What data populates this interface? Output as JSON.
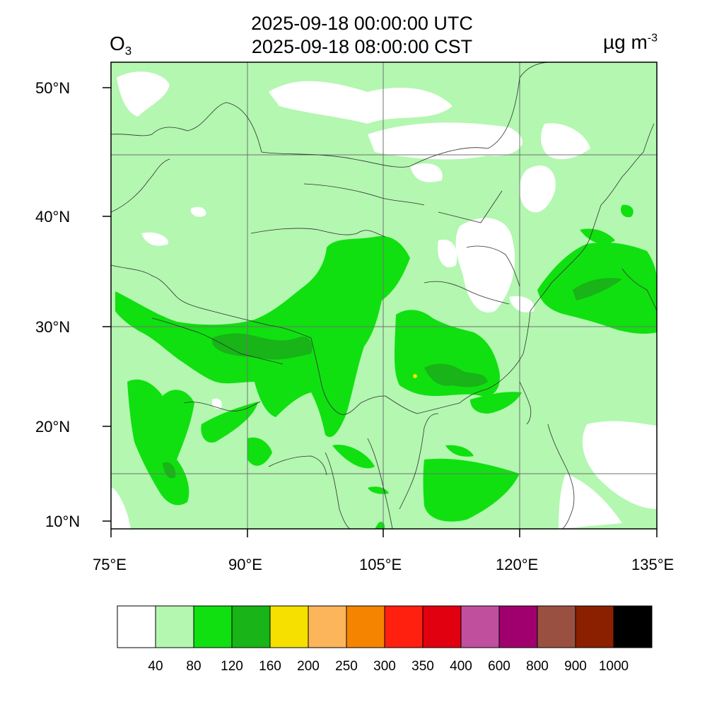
{
  "header": {
    "time_utc": "2025-09-18 00:00:00 UTC",
    "time_local": "2025-09-18 08:00:00 CST",
    "variable": "O",
    "variable_sub": "3",
    "unit_base": "µg m",
    "unit_exp": "-3"
  },
  "axes": {
    "lat_labels": [
      "50°N",
      "40°N",
      "30°N",
      "20°N",
      "10°N"
    ],
    "lon_labels": [
      "75°E",
      "90°E",
      "105°E",
      "120°E",
      "135°E"
    ]
  },
  "colorbar": {
    "colors": [
      "#ffffff",
      "#b3f7b0",
      "#10e010",
      "#18b418",
      "#f5e000",
      "#fdb55c",
      "#f58400",
      "#ff2010",
      "#e00010",
      "#c0509e",
      "#a0006e",
      "#9a5040",
      "#8a2000",
      "#000000"
    ],
    "labels": [
      "40",
      "80",
      "120",
      "160",
      "200",
      "250",
      "300",
      "350",
      "400",
      "600",
      "800",
      "900",
      "1000"
    ]
  },
  "colors": {
    "background_field": "#b3f7b0",
    "level_80": "#10e010",
    "level_120": "#18b418"
  }
}
